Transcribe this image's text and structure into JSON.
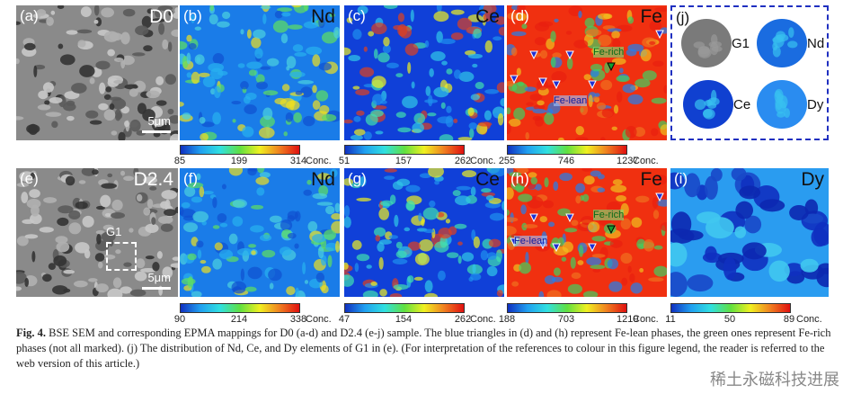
{
  "panels": [
    {
      "label": "(a)",
      "title": "D0",
      "scale": "5μm"
    },
    {
      "label": "(b)",
      "title": "Nd"
    },
    {
      "label": "(c)",
      "title": "Ce"
    },
    {
      "label": "(d)",
      "title": "Fe",
      "rich": "Fe-rich",
      "lean": "Fe-lean"
    },
    {
      "label": "(j)",
      "g1": "G1",
      "nd": "Nd",
      "ce": "Ce",
      "dy": "Dy"
    },
    {
      "label": "(e)",
      "title": "D2.4",
      "scale": "5μm",
      "region": "G1"
    },
    {
      "label": "(f)",
      "title": "Nd"
    },
    {
      "label": "(g)",
      "title": "Ce"
    },
    {
      "label": "(h)",
      "title": "Fe",
      "rich": "Fe-rich",
      "lean": "Fe-lean"
    },
    {
      "label": "(i)",
      "title": "Dy"
    }
  ],
  "colorbars": [
    {
      "ticks": [
        85,
        199,
        314
      ],
      "unit": "Conc."
    },
    {
      "ticks": [
        51,
        157,
        262
      ],
      "unit": "Conc."
    },
    {
      "ticks": [
        255,
        746,
        1237
      ],
      "unit": "Conc."
    },
    {
      "ticks": [
        90,
        214,
        338
      ],
      "unit": "Conc."
    },
    {
      "ticks": [
        47,
        154,
        262
      ],
      "unit": "Conc."
    },
    {
      "ticks": [
        188,
        703,
        1219
      ],
      "unit": "Conc."
    },
    {
      "ticks": [
        11,
        50,
        89
      ],
      "unit": "Conc."
    }
  ],
  "caption": {
    "label": "Fig. 4.",
    "text": "BSE SEM and corresponding EPMA mappings for D0 (a-d) and D2.4 (e-j) sample. The blue triangles in (d) and (h) represent Fe-lean phases, the green ones represent Fe-rich phases (not all marked). (j) The distribution of Nd, Ce, and Dy elements of G1 in (e). (For interpretation of the references to colour in this figure legend, the reader is referred to the web version of this article.)"
  },
  "watermark": "稀土永磁科技进展"
}
